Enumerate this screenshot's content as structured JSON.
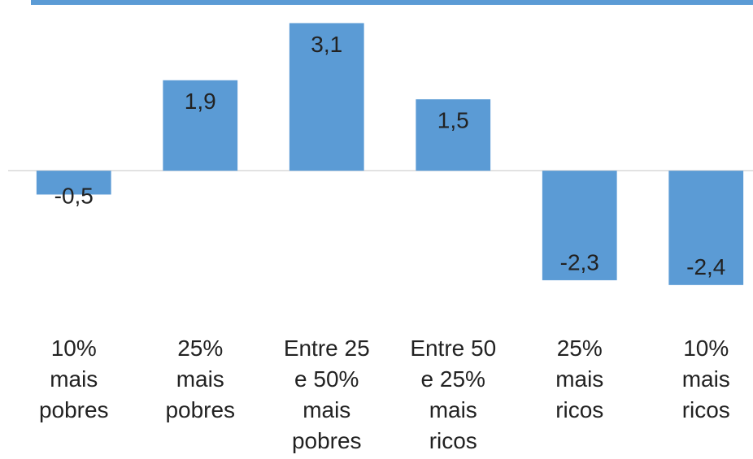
{
  "chart_data": {
    "type": "bar",
    "categories": [
      "10%\nmais\npobres",
      "25%\nmais\npobres",
      "Entre 25\ne 50%\nmais\npobres",
      "Entre 50\ne 25%\nmais\nricos",
      "25%\nmais\nricos",
      "10%\nmais\nricos"
    ],
    "values": [
      -0.5,
      1.9,
      3.1,
      1.5,
      -2.3,
      -2.4
    ],
    "value_labels": [
      "-0,5",
      "1,9",
      "3,1",
      "1,5",
      "-2,3",
      "-2,4"
    ],
    "color": "#5b9bd5",
    "ylim": [
      -3,
      3.5
    ]
  }
}
